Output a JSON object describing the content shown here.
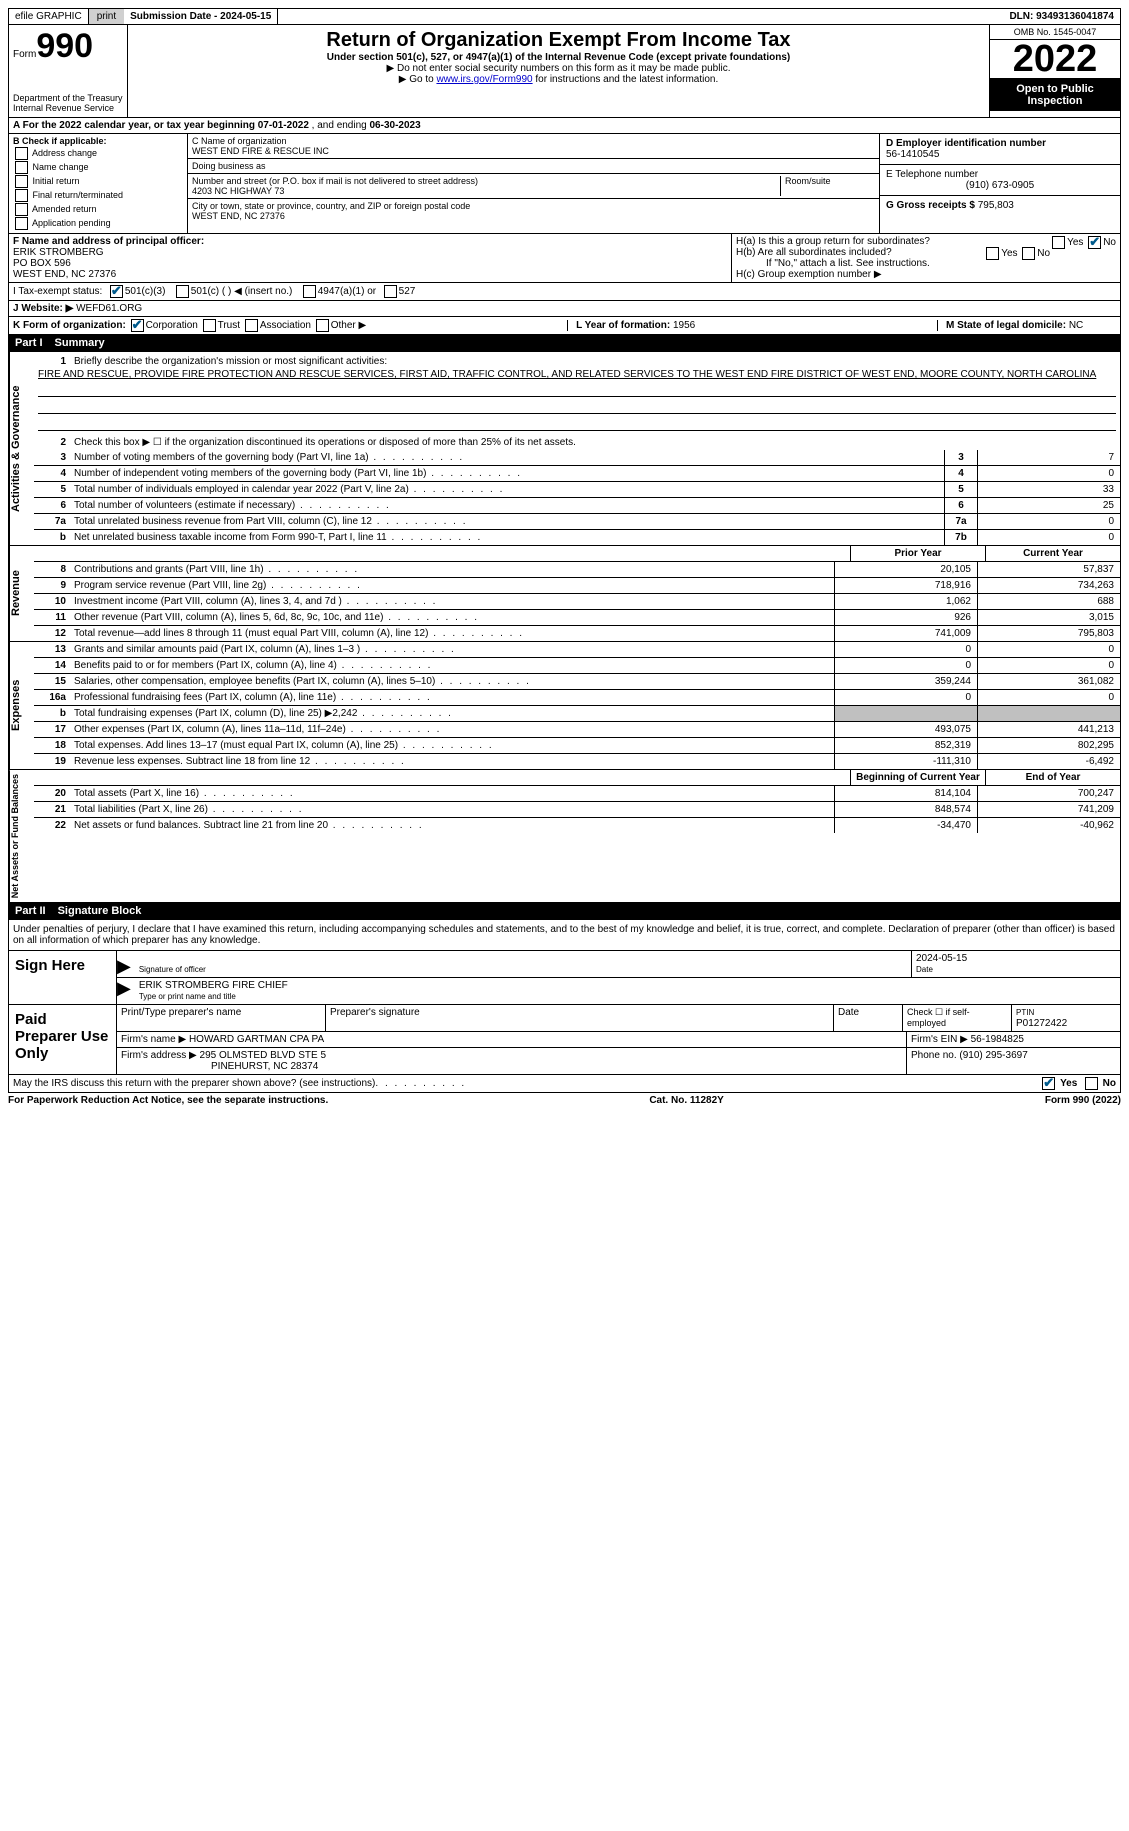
{
  "topbar": {
    "efile": "efile GRAPHIC",
    "print": "print",
    "sub_label": "Submission Date - ",
    "sub_date": "2024-05-15",
    "dln_label": "DLN: ",
    "dln": "93493136041874"
  },
  "hdr": {
    "form_word": "Form",
    "form_num": "990",
    "dept": "Department of the Treasury\nInternal Revenue Service",
    "title": "Return of Organization Exempt From Income Tax",
    "subtitle": "Under section 501(c), 527, or 4947(a)(1) of the Internal Revenue Code (except private foundations)",
    "instr1": "▶ Do not enter social security numbers on this form as it may be made public.",
    "instr2a": "▶ Go to ",
    "instr2_link": "www.irs.gov/Form990",
    "instr2b": " for instructions and the latest information.",
    "omb": "OMB No. 1545-0047",
    "year": "2022",
    "open": "Open to Public Inspection"
  },
  "period": {
    "text_a": "A For the 2022 calendar year, or tax year beginning ",
    "begin": "07-01-2022",
    "text_b": " , and ending ",
    "end": "06-30-2023"
  },
  "blockB": {
    "hdr": "B Check if applicable:",
    "opts": [
      "Address change",
      "Name change",
      "Initial return",
      "Final return/terminated",
      "Amended return",
      "Application pending"
    ]
  },
  "blockC": {
    "name_lbl": "C Name of organization",
    "name": "WEST END FIRE & RESCUE INC",
    "dba_lbl": "Doing business as",
    "dba": "",
    "addr_lbl": "Number and street (or P.O. box if mail is not delivered to street address)",
    "room_lbl": "Room/suite",
    "addr": "4203 NC HIGHWAY 73",
    "city_lbl": "City or town, state or province, country, and ZIP or foreign postal code",
    "city": "WEST END, NC  27376"
  },
  "blockD": {
    "lbl": "D Employer identification number",
    "val": "56-1410545"
  },
  "blockE": {
    "lbl": "E Telephone number",
    "val": "(910) 673-0905"
  },
  "blockG": {
    "lbl": "G Gross receipts $ ",
    "val": "795,803"
  },
  "blockF": {
    "lbl": "F Name and address of principal officer:",
    "name": "ERIK STROMBERG",
    "po": "PO BOX 596",
    "city": "WEST END, NC  27376"
  },
  "blockH": {
    "a": "H(a)  Is this a group return for subordinates?",
    "b": "H(b)  Are all subordinates included?",
    "b_note": "If \"No,\" attach a list. See instructions.",
    "c": "H(c)  Group exemption number ▶",
    "yes": "Yes",
    "no": "No"
  },
  "rowI": {
    "lbl": "I   Tax-exempt status:",
    "o1": "501(c)(3)",
    "o2": "501(c) (  ) ◀ (insert no.)",
    "o3": "4947(a)(1) or",
    "o4": "527"
  },
  "rowJ": {
    "lbl": "J   Website: ▶",
    "val": "WEFD61.ORG"
  },
  "rowK": {
    "lbl": "K Form of organization:",
    "o1": "Corporation",
    "o2": "Trust",
    "o3": "Association",
    "o4": "Other ▶",
    "L_lbl": "L Year of formation: ",
    "L_val": "1956",
    "M_lbl": "M State of legal domicile: ",
    "M_val": "NC"
  },
  "part1": {
    "num": "Part I",
    "title": "Summary"
  },
  "summary": {
    "l1_lbl": "Briefly describe the organization's mission or most significant activities:",
    "l1_txt": "FIRE AND RESCUE, PROVIDE FIRE PROTECTION AND RESCUE SERVICES, FIRST AID, TRAFFIC CONTROL, AND RELATED SERVICES TO THE WEST END FIRE DISTRICT OF WEST END, MOORE COUNTY, NORTH CAROLINA",
    "l2": "Check this box ▶ ☐ if the organization discontinued its operations or disposed of more than 25% of its net assets.",
    "lines_ag": [
      {
        "n": "3",
        "t": "Number of voting members of the governing body (Part VI, line 1a)",
        "b": "3",
        "v": "7"
      },
      {
        "n": "4",
        "t": "Number of independent voting members of the governing body (Part VI, line 1b)",
        "b": "4",
        "v": "0"
      },
      {
        "n": "5",
        "t": "Total number of individuals employed in calendar year 2022 (Part V, line 2a)",
        "b": "5",
        "v": "33"
      },
      {
        "n": "6",
        "t": "Total number of volunteers (estimate if necessary)",
        "b": "6",
        "v": "25"
      },
      {
        "n": "7a",
        "t": "Total unrelated business revenue from Part VIII, column (C), line 12",
        "b": "7a",
        "v": "0"
      },
      {
        "n": "b",
        "t": "Net unrelated business taxable income from Form 990-T, Part I, line 11",
        "b": "7b",
        "v": "0"
      }
    ],
    "col_prior": "Prior Year",
    "col_curr": "Current Year",
    "revenue": [
      {
        "n": "8",
        "t": "Contributions and grants (Part VIII, line 1h)",
        "p": "20,105",
        "c": "57,837"
      },
      {
        "n": "9",
        "t": "Program service revenue (Part VIII, line 2g)",
        "p": "718,916",
        "c": "734,263"
      },
      {
        "n": "10",
        "t": "Investment income (Part VIII, column (A), lines 3, 4, and 7d )",
        "p": "1,062",
        "c": "688"
      },
      {
        "n": "11",
        "t": "Other revenue (Part VIII, column (A), lines 5, 6d, 8c, 9c, 10c, and 11e)",
        "p": "926",
        "c": "3,015"
      },
      {
        "n": "12",
        "t": "Total revenue—add lines 8 through 11 (must equal Part VIII, column (A), line 12)",
        "p": "741,009",
        "c": "795,803"
      }
    ],
    "expenses": [
      {
        "n": "13",
        "t": "Grants and similar amounts paid (Part IX, column (A), lines 1–3 )",
        "p": "0",
        "c": "0"
      },
      {
        "n": "14",
        "t": "Benefits paid to or for members (Part IX, column (A), line 4)",
        "p": "0",
        "c": "0"
      },
      {
        "n": "15",
        "t": "Salaries, other compensation, employee benefits (Part IX, column (A), lines 5–10)",
        "p": "359,244",
        "c": "361,082"
      },
      {
        "n": "16a",
        "t": "Professional fundraising fees (Part IX, column (A), line 11e)",
        "p": "0",
        "c": "0"
      },
      {
        "n": "b",
        "t": "Total fundraising expenses (Part IX, column (D), line 25) ▶2,242",
        "p": "",
        "c": "",
        "shade": true
      },
      {
        "n": "17",
        "t": "Other expenses (Part IX, column (A), lines 11a–11d, 11f–24e)",
        "p": "493,075",
        "c": "441,213"
      },
      {
        "n": "18",
        "t": "Total expenses. Add lines 13–17 (must equal Part IX, column (A), line 25)",
        "p": "852,319",
        "c": "802,295"
      },
      {
        "n": "19",
        "t": "Revenue less expenses. Subtract line 18 from line 12",
        "p": "-111,310",
        "c": "-6,492"
      }
    ],
    "col_begin": "Beginning of Current Year",
    "col_end": "End of Year",
    "net": [
      {
        "n": "20",
        "t": "Total assets (Part X, line 16)",
        "p": "814,104",
        "c": "700,247"
      },
      {
        "n": "21",
        "t": "Total liabilities (Part X, line 26)",
        "p": "848,574",
        "c": "741,209"
      },
      {
        "n": "22",
        "t": "Net assets or fund balances. Subtract line 21 from line 20",
        "p": "-34,470",
        "c": "-40,962"
      }
    ],
    "side_ag": "Activities & Governance",
    "side_rev": "Revenue",
    "side_exp": "Expenses",
    "side_net": "Net Assets or Fund Balances"
  },
  "part2": {
    "num": "Part II",
    "title": "Signature Block"
  },
  "sig": {
    "penalty": "Under penalties of perjury, I declare that I have examined this return, including accompanying schedules and statements, and to the best of my knowledge and belief, it is true, correct, and complete. Declaration of preparer (other than officer) is based on all information of which preparer has any knowledge.",
    "sign_here": "Sign Here",
    "sig_officer": "Signature of officer",
    "date": "2024-05-15",
    "date_lbl": "Date",
    "name_title": "ERIK STROMBERG  FIRE CHIEF",
    "type_lbl": "Type or print name and title"
  },
  "prep": {
    "lbl": "Paid Preparer Use Only",
    "r1_a": "Print/Type preparer's name",
    "r1_b": "Preparer's signature",
    "r1_c": "Date",
    "r1_d": "Check ☐ if self-employed",
    "r1_e_lbl": "PTIN",
    "r1_e": "P01272422",
    "r2_a": "Firm's name    ▶ ",
    "r2_a_val": "HOWARD GARTMAN CPA PA",
    "r2_b": "Firm's EIN ▶ ",
    "r2_b_val": "56-1984825",
    "r3_a": "Firm's address ▶ ",
    "r3_a_val": "295 OLMSTED BLVD STE 5",
    "r3_a_val2": "PINEHURST, NC  28374",
    "r3_b": "Phone no. ",
    "r3_b_val": "(910) 295-3697"
  },
  "discuss": {
    "txt": "May the IRS discuss this return with the preparer shown above? (see instructions)",
    "yes": "Yes",
    "no": "No"
  },
  "footer": {
    "left": "For Paperwork Reduction Act Notice, see the separate instructions.",
    "mid": "Cat. No. 11282Y",
    "right": "Form 990 (2022)"
  }
}
